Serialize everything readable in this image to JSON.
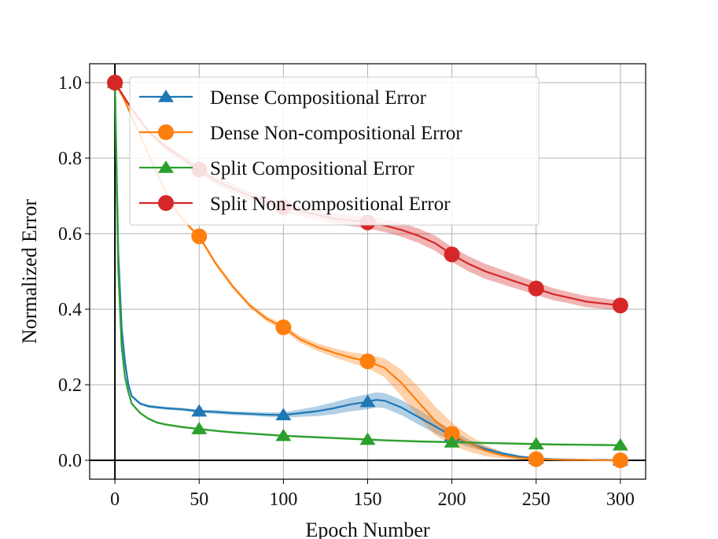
{
  "chart_data": {
    "type": "line",
    "title": "",
    "xlabel": "Epoch Number",
    "ylabel": "Normalized Error",
    "xlim": [
      -15,
      315
    ],
    "ylim": [
      -0.05,
      1.05
    ],
    "xticks": [
      0,
      50,
      100,
      150,
      200,
      250,
      300
    ],
    "yticks": [
      0.0,
      0.2,
      0.4,
      0.6,
      0.8,
      1.0
    ],
    "xtick_labels": [
      "0",
      "50",
      "100",
      "150",
      "200",
      "250",
      "300"
    ],
    "ytick_labels": [
      "0.0",
      "0.2",
      "0.4",
      "0.6",
      "0.8",
      "1.0"
    ],
    "grid": true,
    "legend_position": "top-right",
    "series": [
      {
        "name": "Dense Compositional Error",
        "color": "#1f77b4",
        "marker": "triangle",
        "x": [
          0,
          2,
          4,
          6,
          8,
          10,
          15,
          20,
          30,
          40,
          50,
          60,
          70,
          80,
          90,
          100,
          110,
          120,
          130,
          140,
          150,
          155,
          160,
          170,
          180,
          190,
          200,
          210,
          220,
          230,
          240,
          250,
          260,
          270,
          280,
          290,
          300
        ],
        "y": [
          1.0,
          0.55,
          0.35,
          0.26,
          0.2,
          0.17,
          0.15,
          0.143,
          0.138,
          0.135,
          0.13,
          0.128,
          0.125,
          0.123,
          0.121,
          0.12,
          0.125,
          0.13,
          0.138,
          0.148,
          0.155,
          0.16,
          0.158,
          0.14,
          0.115,
          0.09,
          0.065,
          0.045,
          0.03,
          0.018,
          0.01,
          0.005,
          0.003,
          0.002,
          0.001,
          0.001,
          0.0
        ],
        "band": [
          0,
          0.004,
          0.004,
          0.004,
          0.004,
          0.004,
          0.004,
          0.004,
          0.004,
          0.004,
          0.004,
          0.005,
          0.005,
          0.005,
          0.006,
          0.007,
          0.01,
          0.013,
          0.016,
          0.018,
          0.02,
          0.02,
          0.02,
          0.02,
          0.02,
          0.018,
          0.014,
          0.01,
          0.007,
          0.005,
          0.003,
          0.002,
          0.001,
          0.001,
          0.001,
          0.001,
          0.0
        ],
        "marker_x": [
          0,
          50,
          100,
          150,
          200,
          250,
          300
        ],
        "marker_y": [
          1.0,
          0.13,
          0.12,
          0.155,
          0.065,
          0.005,
          0.0
        ]
      },
      {
        "name": "Dense Non-compositional Error",
        "color": "#ff7f0e",
        "marker": "circle",
        "x": [
          0,
          5,
          10,
          15,
          20,
          25,
          30,
          35,
          40,
          45,
          50,
          60,
          70,
          80,
          90,
          100,
          110,
          120,
          130,
          140,
          150,
          160,
          170,
          180,
          190,
          200,
          210,
          220,
          230,
          240,
          250,
          260,
          270,
          280,
          290,
          300
        ],
        "y": [
          1.0,
          0.96,
          0.91,
          0.86,
          0.81,
          0.76,
          0.71,
          0.67,
          0.64,
          0.615,
          0.593,
          0.52,
          0.46,
          0.41,
          0.375,
          0.352,
          0.32,
          0.3,
          0.285,
          0.272,
          0.262,
          0.245,
          0.205,
          0.155,
          0.105,
          0.07,
          0.045,
          0.025,
          0.013,
          0.006,
          0.003,
          0.002,
          0.001,
          0.001,
          0.0,
          0.0
        ],
        "band": [
          0,
          0.004,
          0.005,
          0.005,
          0.005,
          0.005,
          0.005,
          0.005,
          0.005,
          0.005,
          0.005,
          0.006,
          0.006,
          0.006,
          0.007,
          0.008,
          0.009,
          0.01,
          0.012,
          0.014,
          0.018,
          0.025,
          0.035,
          0.04,
          0.038,
          0.03,
          0.022,
          0.014,
          0.008,
          0.004,
          0.002,
          0.001,
          0.001,
          0.0,
          0.0,
          0.0
        ],
        "marker_x": [
          0,
          50,
          100,
          150,
          200,
          250,
          300
        ],
        "marker_y": [
          1.0,
          0.593,
          0.352,
          0.262,
          0.07,
          0.003,
          0.0
        ]
      },
      {
        "name": "Split Compositional Error",
        "color": "#2ca02c",
        "marker": "triangle",
        "x": [
          0,
          2,
          4,
          6,
          8,
          10,
          15,
          20,
          25,
          30,
          40,
          50,
          60,
          70,
          80,
          90,
          100,
          120,
          140,
          150,
          160,
          180,
          200,
          220,
          240,
          250,
          260,
          280,
          300
        ],
        "y": [
          1.0,
          0.5,
          0.3,
          0.22,
          0.18,
          0.15,
          0.125,
          0.11,
          0.1,
          0.095,
          0.088,
          0.083,
          0.078,
          0.074,
          0.071,
          0.068,
          0.065,
          0.061,
          0.057,
          0.055,
          0.053,
          0.05,
          0.048,
          0.046,
          0.044,
          0.043,
          0.042,
          0.041,
          0.04
        ],
        "band": [
          0,
          0.003,
          0.003,
          0.003,
          0.003,
          0.003,
          0.003,
          0.003,
          0.003,
          0.003,
          0.003,
          0.003,
          0.003,
          0.003,
          0.003,
          0.003,
          0.003,
          0.003,
          0.003,
          0.003,
          0.003,
          0.003,
          0.003,
          0.003,
          0.003,
          0.003,
          0.003,
          0.003,
          0.003
        ],
        "marker_x": [
          0,
          50,
          100,
          150,
          200,
          250,
          300
        ],
        "marker_y": [
          1.0,
          0.083,
          0.065,
          0.055,
          0.048,
          0.043,
          0.04
        ]
      },
      {
        "name": "Split Non-compositional Error",
        "color": "#d62728",
        "marker": "circle",
        "x": [
          0,
          10,
          20,
          30,
          40,
          50,
          60,
          70,
          80,
          90,
          100,
          110,
          120,
          130,
          140,
          150,
          160,
          170,
          180,
          190,
          200,
          210,
          220,
          230,
          240,
          250,
          260,
          270,
          280,
          290,
          300
        ],
        "y": [
          1.0,
          0.93,
          0.87,
          0.83,
          0.8,
          0.77,
          0.74,
          0.72,
          0.7,
          0.685,
          0.67,
          0.66,
          0.65,
          0.64,
          0.635,
          0.63,
          0.622,
          0.61,
          0.595,
          0.575,
          0.545,
          0.52,
          0.5,
          0.485,
          0.47,
          0.455,
          0.44,
          0.43,
          0.42,
          0.415,
          0.41
        ],
        "band": [
          0,
          0.006,
          0.007,
          0.008,
          0.009,
          0.01,
          0.011,
          0.012,
          0.012,
          0.013,
          0.013,
          0.014,
          0.014,
          0.015,
          0.015,
          0.016,
          0.017,
          0.018,
          0.019,
          0.02,
          0.02,
          0.02,
          0.02,
          0.019,
          0.018,
          0.017,
          0.016,
          0.015,
          0.015,
          0.014,
          0.013
        ],
        "marker_x": [
          0,
          50,
          100,
          150,
          200,
          250,
          300
        ],
        "marker_y": [
          1.0,
          0.77,
          0.67,
          0.63,
          0.545,
          0.455,
          0.41
        ]
      }
    ]
  }
}
